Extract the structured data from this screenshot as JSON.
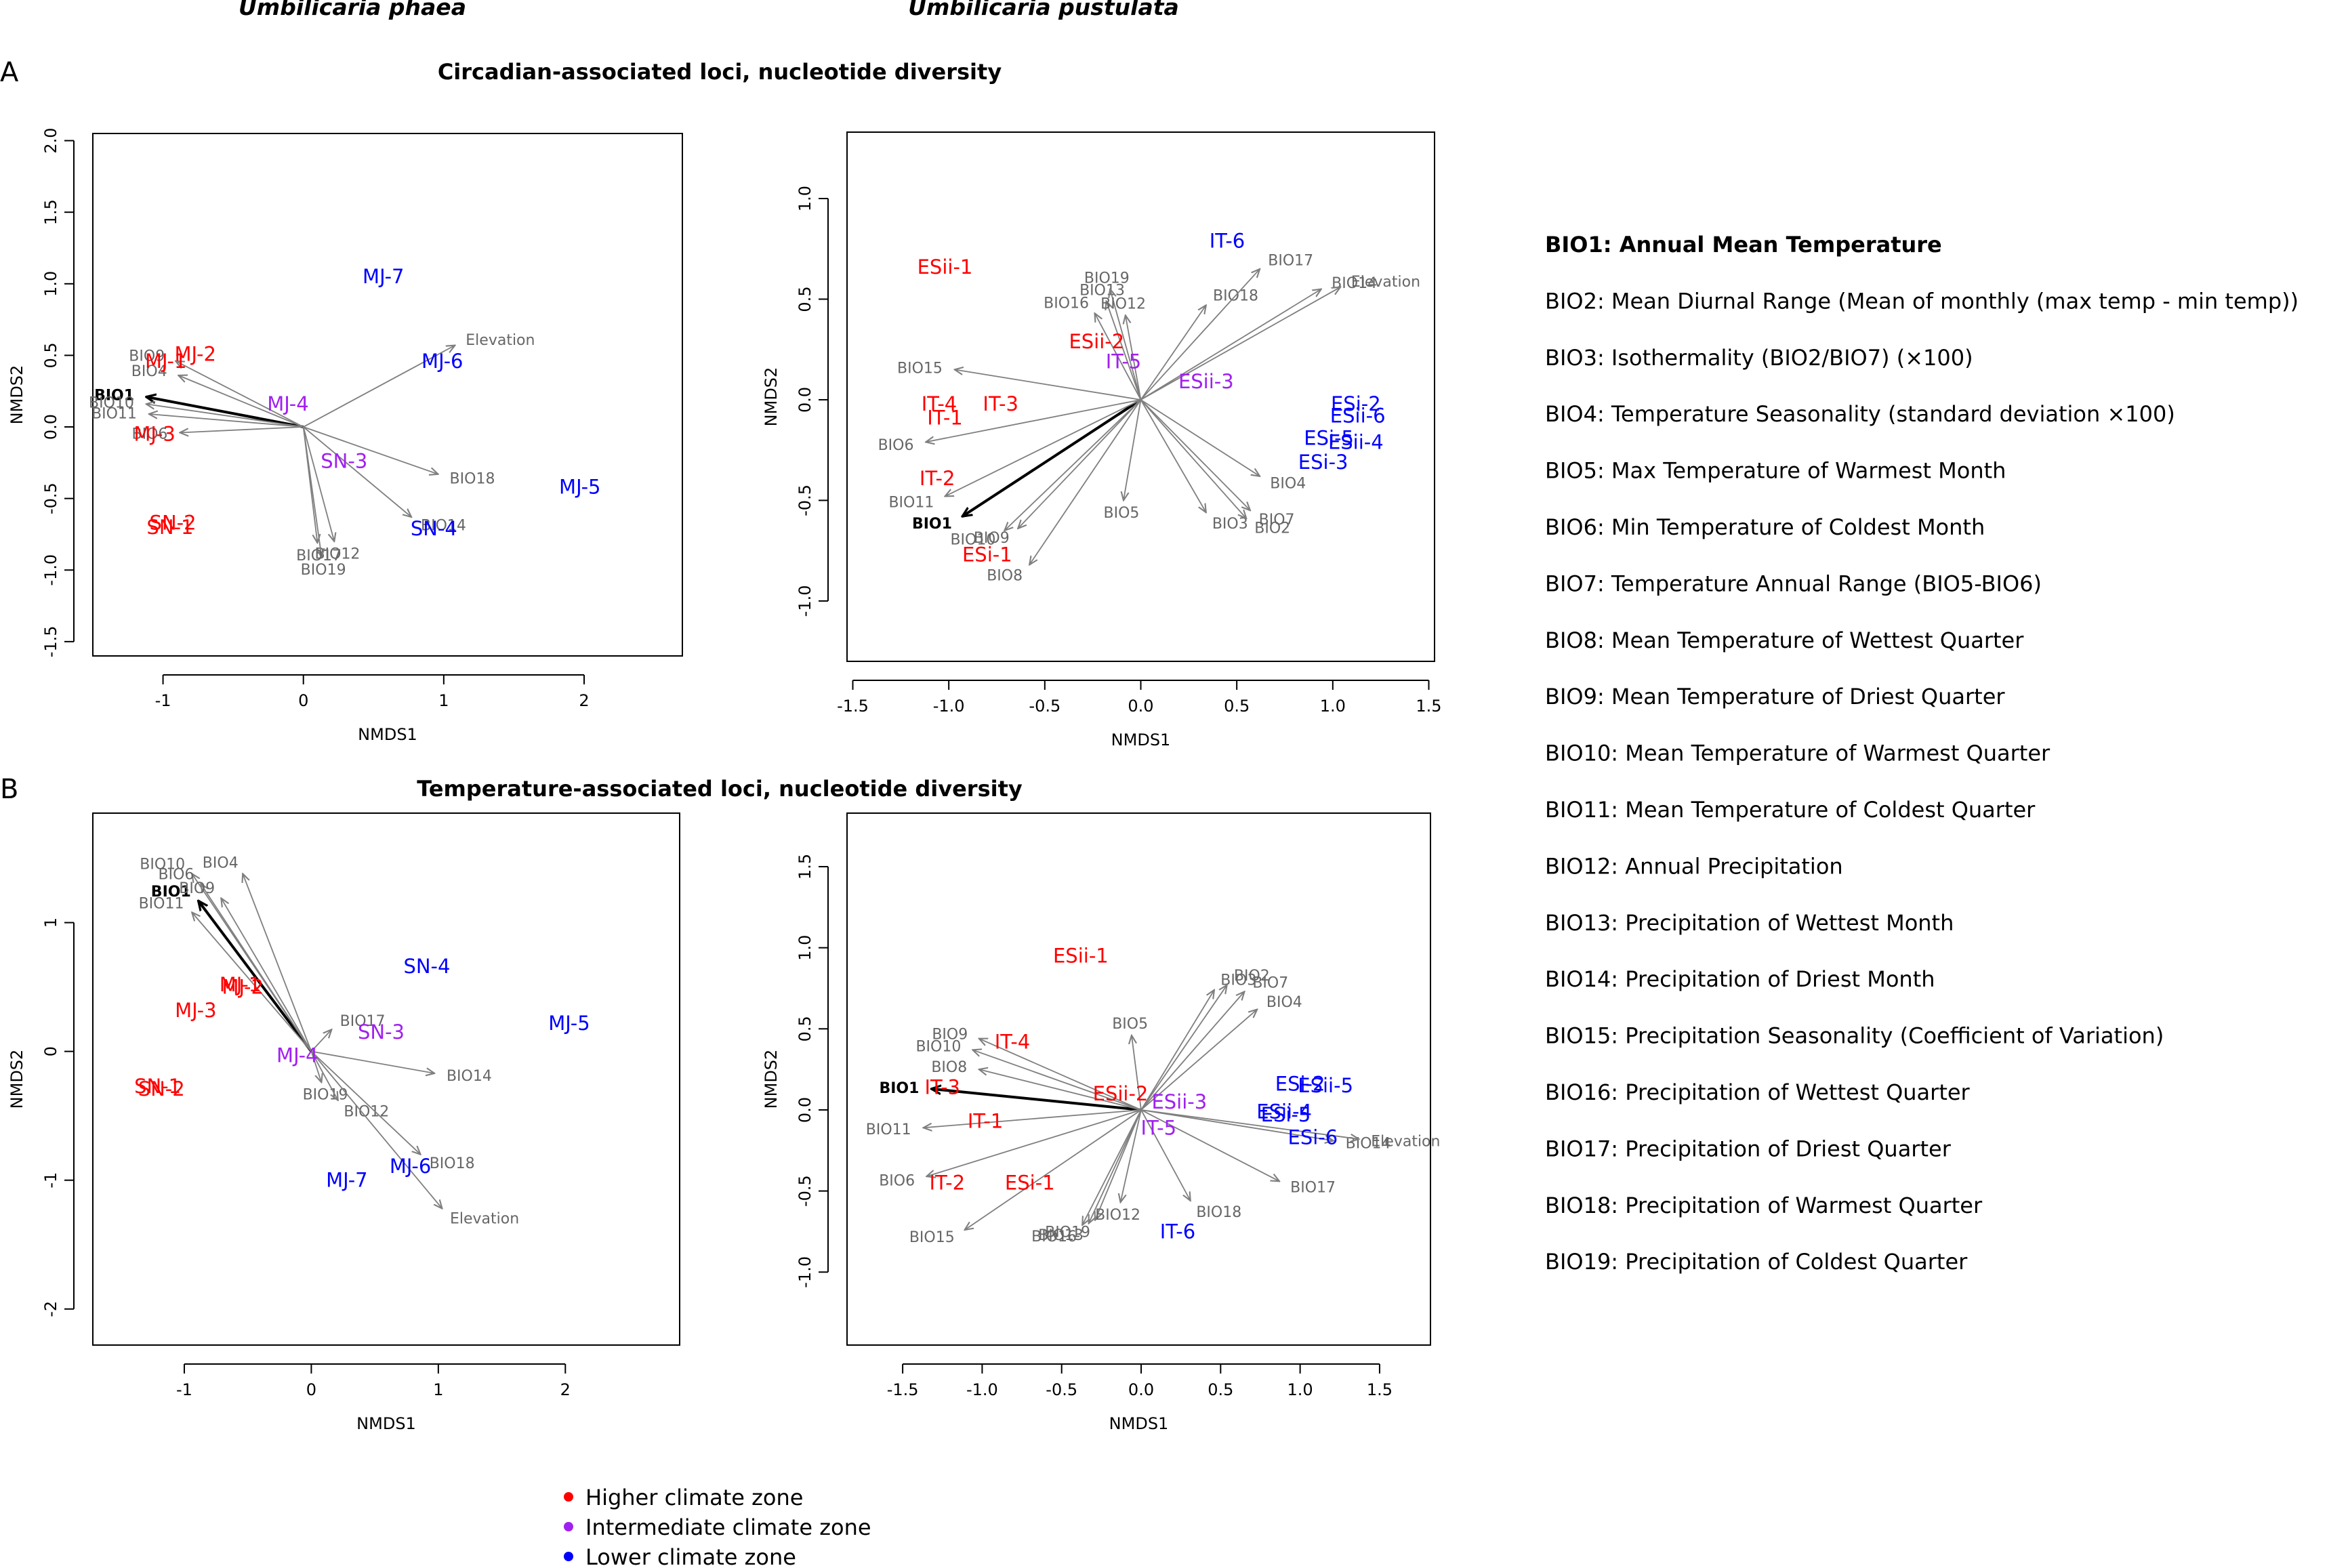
{
  "column_titles": [
    "Umbilicaria phaea",
    "Umbilicaria pustulata"
  ],
  "panel_letters": [
    "A",
    "B"
  ],
  "row_titles": [
    "Circadian-associated loci, nucleotide diversity",
    "Temperature-associated loci, nucleotide diversity"
  ],
  "bio_legend": [
    "BIO1: Annual Mean Temperature",
    "BIO2: Mean Diurnal Range (Mean of monthly (max temp - min temp))",
    "BIO3: Isothermality (BIO2/BIO7) (×100)",
    "BIO4: Temperature Seasonality (standard deviation ×100)",
    "BIO5: Max Temperature of Warmest Month",
    "BIO6: Min Temperature of Coldest Month",
    "BIO7: Temperature Annual Range (BIO5-BIO6)",
    "BIO8: Mean Temperature of Wettest Quarter",
    "BIO9: Mean Temperature of Driest Quarter",
    "BIO10: Mean Temperature of Warmest Quarter",
    "BIO11: Mean Temperature of Coldest Quarter",
    "BIO12: Annual Precipitation",
    "BIO13: Precipitation of Wettest Month",
    "BIO14: Precipitation of Driest Month",
    "BIO15: Precipitation Seasonality (Coefficient of Variation)",
    "BIO16: Precipitation of Wettest Quarter",
    "BIO17: Precipitation of Driest Quarter",
    "BIO18: Precipitation of Warmest Quarter",
    "BIO19: Precipitation of Coldest Quarter"
  ],
  "zone_legend": [
    {
      "label": "Higher climate zone",
      "color": "#ff0000"
    },
    {
      "label": "Intermediate climate zone",
      "color": "#a020f0"
    },
    {
      "label": "Lower climate zone",
      "color": "#0000ff"
    }
  ],
  "colors": {
    "high": "#ff0000",
    "mid": "#a020f0",
    "low": "#0000ff",
    "arrow": "#7f7f7f",
    "bio1": "#000000"
  },
  "chart_data": [
    {
      "type": "scatter",
      "panel": "A-phaea",
      "xlabel": "NMDS1",
      "ylabel": "NMDS2",
      "xlim": [
        -1.5,
        2.7
      ],
      "ylim": [
        -1.6,
        2.05
      ],
      "xticks": [
        -1,
        0,
        1,
        2
      ],
      "yticks": [
        -1.5,
        -1.0,
        -0.5,
        0.0,
        0.5,
        1.0,
        1.5,
        2.0
      ],
      "points": [
        {
          "label": "MJ-7",
          "x": 0.57,
          "y": 1.05,
          "zone": "low"
        },
        {
          "label": "MJ-6",
          "x": 0.99,
          "y": 0.46,
          "zone": "low"
        },
        {
          "label": "MJ-5",
          "x": 1.97,
          "y": -0.42,
          "zone": "low"
        },
        {
          "label": "SN-4",
          "x": 0.93,
          "y": -0.71,
          "zone": "low"
        },
        {
          "label": "MJ-4",
          "x": -0.11,
          "y": 0.16,
          "zone": "mid"
        },
        {
          "label": "SN-3",
          "x": 0.29,
          "y": -0.24,
          "zone": "mid"
        },
        {
          "label": "MJ-2",
          "x": -0.77,
          "y": 0.51,
          "zone": "high"
        },
        {
          "label": "MJ-1",
          "x": -0.98,
          "y": 0.46,
          "zone": "high"
        },
        {
          "label": "MJ-3",
          "x": -1.06,
          "y": -0.05,
          "zone": "high"
        },
        {
          "label": "SN-2",
          "x": -0.93,
          "y": -0.67,
          "zone": "high"
        },
        {
          "label": "SN-1",
          "x": -0.95,
          "y": -0.7,
          "zone": "high"
        }
      ],
      "vectors": [
        {
          "label": "BIO1",
          "x": -1.12,
          "y": 0.21
        },
        {
          "label": "BIO9",
          "x": -0.91,
          "y": 0.46
        },
        {
          "label": "BIO4",
          "x": -0.89,
          "y": 0.36
        },
        {
          "label": "BIO10",
          "x": -1.12,
          "y": 0.16
        },
        {
          "label": "BIO11",
          "x": -1.1,
          "y": 0.09
        },
        {
          "label": "BIO6",
          "x": -0.88,
          "y": -0.04
        },
        {
          "label": "Elevation",
          "x": 1.08,
          "y": 0.57
        },
        {
          "label": "BIO18",
          "x": 0.96,
          "y": -0.33
        },
        {
          "label": "BIO14",
          "x": 0.77,
          "y": -0.63
        },
        {
          "label": "BIO12",
          "x": 0.22,
          "y": -0.8
        },
        {
          "label": "BIO19",
          "x": 0.13,
          "y": -0.91
        },
        {
          "label": "BIO17",
          "x": 0.1,
          "y": -0.81
        }
      ]
    },
    {
      "type": "scatter",
      "panel": "A-pustulata",
      "xlabel": "NMDS1",
      "ylabel": "NMDS2",
      "xlim": [
        -1.53,
        1.53
      ],
      "ylim": [
        -1.3,
        1.33
      ],
      "xticks": [
        -1.5,
        -1.0,
        -0.5,
        0.0,
        0.5,
        1.0,
        1.5
      ],
      "yticks": [
        -1.0,
        -0.5,
        0.0,
        0.5,
        1.0
      ],
      "points": [
        {
          "label": "ESii-1",
          "x": -1.02,
          "y": 0.66,
          "zone": "high"
        },
        {
          "label": "ESii-2",
          "x": -0.23,
          "y": 0.29,
          "zone": "high"
        },
        {
          "label": "IT-4",
          "x": -1.05,
          "y": -0.02,
          "zone": "high"
        },
        {
          "label": "IT-3",
          "x": -0.73,
          "y": -0.02,
          "zone": "high"
        },
        {
          "label": "IT-1",
          "x": -1.02,
          "y": -0.09,
          "zone": "high"
        },
        {
          "label": "IT-2",
          "x": -1.06,
          "y": -0.39,
          "zone": "high"
        },
        {
          "label": "ESi-1",
          "x": -0.8,
          "y": -0.77,
          "zone": "high"
        },
        {
          "label": "IT-5",
          "x": -0.09,
          "y": 0.19,
          "zone": "mid"
        },
        {
          "label": "ESii-3",
          "x": 0.34,
          "y": 0.09,
          "zone": "mid"
        },
        {
          "label": "IT-6",
          "x": 0.45,
          "y": 0.79,
          "zone": "low"
        },
        {
          "label": "ESi-2",
          "x": 1.12,
          "y": -0.02,
          "zone": "low"
        },
        {
          "label": "ESii-6",
          "x": 1.13,
          "y": -0.08,
          "zone": "low"
        },
        {
          "label": "ESi-5",
          "x": 0.98,
          "y": -0.19,
          "zone": "low"
        },
        {
          "label": "ESii-4",
          "x": 1.12,
          "y": -0.21,
          "zone": "low"
        },
        {
          "label": "ESi-3",
          "x": 0.95,
          "y": -0.31,
          "zone": "low"
        }
      ],
      "vectors": [
        {
          "label": "BIO1",
          "x": -0.93,
          "y": -0.58
        },
        {
          "label": "BIO10",
          "x": -0.71,
          "y": -0.65
        },
        {
          "label": "BIO9",
          "x": -0.64,
          "y": -0.64
        },
        {
          "label": "BIO8",
          "x": -0.58,
          "y": -0.82
        },
        {
          "label": "BIO11",
          "x": -1.02,
          "y": -0.48
        },
        {
          "label": "BIO6",
          "x": -1.12,
          "y": -0.21
        },
        {
          "label": "BIO15",
          "x": -0.97,
          "y": 0.15
        },
        {
          "label": "BIO16",
          "x": -0.24,
          "y": 0.43
        },
        {
          "label": "BIO13",
          "x": -0.18,
          "y": 0.49
        },
        {
          "label": "BIO19",
          "x": -0.16,
          "y": 0.55
        },
        {
          "label": "BIO12",
          "x": -0.08,
          "y": 0.42
        },
        {
          "label": "BIO18",
          "x": 0.34,
          "y": 0.47
        },
        {
          "label": "BIO17",
          "x": 0.62,
          "y": 0.65
        },
        {
          "label": "BIO14",
          "x": 0.94,
          "y": 0.55
        },
        {
          "label": "Elevation",
          "x": 1.04,
          "y": 0.56
        },
        {
          "label": "BIO5",
          "x": -0.09,
          "y": -0.5
        },
        {
          "label": "BIO3",
          "x": 0.34,
          "y": -0.56
        },
        {
          "label": "BIO2",
          "x": 0.55,
          "y": -0.59
        },
        {
          "label": "BIO7",
          "x": 0.57,
          "y": -0.55
        },
        {
          "label": "BIO4",
          "x": 0.62,
          "y": -0.38
        }
      ]
    },
    {
      "type": "scatter",
      "panel": "B-phaea",
      "xlabel": "NMDS1",
      "ylabel": "NMDS2",
      "xlim": [
        -1.72,
        2.9
      ],
      "ylim": [
        -2.28,
        1.85
      ],
      "xticks": [
        -1,
        0,
        1,
        2
      ],
      "yticks": [
        -2,
        -1,
        0,
        1
      ],
      "points": [
        {
          "label": "SN-4",
          "x": 0.91,
          "y": 0.66,
          "zone": "low"
        },
        {
          "label": "MJ-5",
          "x": 2.03,
          "y": 0.22,
          "zone": "low"
        },
        {
          "label": "MJ-6",
          "x": 0.78,
          "y": -0.89,
          "zone": "low"
        },
        {
          "label": "MJ-7",
          "x": 0.28,
          "y": -1.0,
          "zone": "low"
        },
        {
          "label": "SN-3",
          "x": 0.55,
          "y": 0.15,
          "zone": "mid"
        },
        {
          "label": "MJ-4",
          "x": -0.11,
          "y": -0.03,
          "zone": "mid"
        },
        {
          "label": "MJ-1",
          "x": -0.56,
          "y": 0.52,
          "zone": "high"
        },
        {
          "label": "MJ-2",
          "x": -0.54,
          "y": 0.5,
          "zone": "high"
        },
        {
          "label": "MJ-3",
          "x": -0.91,
          "y": 0.32,
          "zone": "high"
        },
        {
          "label": "SN-1",
          "x": -1.21,
          "y": -0.27,
          "zone": "high"
        },
        {
          "label": "SN-2",
          "x": -1.18,
          "y": -0.29,
          "zone": "high"
        }
      ],
      "vectors": [
        {
          "label": "BIO1",
          "x": -0.89,
          "y": 1.17
        },
        {
          "label": "BIO4",
          "x": -0.54,
          "y": 1.38
        },
        {
          "label": "BIO10",
          "x": -0.94,
          "y": 1.38
        },
        {
          "label": "BIO6",
          "x": -0.87,
          "y": 1.3
        },
        {
          "label": "BIO9",
          "x": -0.71,
          "y": 1.19
        },
        {
          "label": "BIO11",
          "x": -0.94,
          "y": 1.08
        },
        {
          "label": "BIO17",
          "x": 0.16,
          "y": 0.17
        },
        {
          "label": "BIO14",
          "x": 0.97,
          "y": -0.17
        },
        {
          "label": "BIO19",
          "x": 0.08,
          "y": -0.24
        },
        {
          "label": "BIO12",
          "x": 0.21,
          "y": -0.38
        },
        {
          "label": "BIO18",
          "x": 0.86,
          "y": -0.8
        },
        {
          "label": "Elevation",
          "x": 1.03,
          "y": -1.22
        }
      ]
    },
    {
      "type": "scatter",
      "panel": "B-pustulata",
      "xlabel": "NMDS1",
      "ylabel": "NMDS2",
      "xlim": [
        -1.85,
        1.82
      ],
      "ylim": [
        -1.45,
        1.83
      ],
      "xticks": [
        -1.5,
        -1.0,
        -0.5,
        0.0,
        0.5,
        1.0,
        1.5
      ],
      "yticks": [
        -1.0,
        -0.5,
        0.0,
        0.5,
        1.0,
        1.5
      ],
      "points": [
        {
          "label": "ESii-1",
          "x": -0.38,
          "y": 0.95,
          "zone": "high"
        },
        {
          "label": "IT-4",
          "x": -0.81,
          "y": 0.42,
          "zone": "high"
        },
        {
          "label": "IT-3",
          "x": -1.25,
          "y": 0.14,
          "zone": "high"
        },
        {
          "label": "ESii-2",
          "x": -0.13,
          "y": 0.1,
          "zone": "high"
        },
        {
          "label": "IT-1",
          "x": -0.98,
          "y": -0.07,
          "zone": "high"
        },
        {
          "label": "IT-2",
          "x": -1.22,
          "y": -0.45,
          "zone": "high"
        },
        {
          "label": "ESi-1",
          "x": -0.7,
          "y": -0.45,
          "zone": "high"
        },
        {
          "label": "ESii-3",
          "x": 0.24,
          "y": 0.05,
          "zone": "mid"
        },
        {
          "label": "IT-5",
          "x": 0.11,
          "y": -0.11,
          "zone": "mid"
        },
        {
          "label": "IT-6",
          "x": 0.23,
          "y": -0.75,
          "zone": "low"
        },
        {
          "label": "ESi-2",
          "x": 1.0,
          "y": 0.16,
          "zone": "low"
        },
        {
          "label": "ESii-5",
          "x": 1.16,
          "y": 0.15,
          "zone": "low"
        },
        {
          "label": "ESii-4",
          "x": 0.9,
          "y": -0.01,
          "zone": "low"
        },
        {
          "label": "ESi-5",
          "x": 0.91,
          "y": -0.03,
          "zone": "low"
        },
        {
          "label": "ESi-6",
          "x": 1.08,
          "y": -0.17,
          "zone": "low"
        }
      ],
      "vectors": [
        {
          "label": "BIO1",
          "x": -1.32,
          "y": 0.13
        },
        {
          "label": "BIO9",
          "x": -1.02,
          "y": 0.44
        },
        {
          "label": "BIO10",
          "x": -1.06,
          "y": 0.37
        },
        {
          "label": "BIO8",
          "x": -1.02,
          "y": 0.25
        },
        {
          "label": "BIO11",
          "x": -1.37,
          "y": -0.11
        },
        {
          "label": "BIO6",
          "x": -1.35,
          "y": -0.41
        },
        {
          "label": "BIO15",
          "x": -1.11,
          "y": -0.74
        },
        {
          "label": "BIO16",
          "x": -0.37,
          "y": -0.71
        },
        {
          "label": "BIO13",
          "x": -0.33,
          "y": -0.7
        },
        {
          "label": "BIO19",
          "x": -0.29,
          "y": -0.68
        },
        {
          "label": "BIO12",
          "x": -0.13,
          "y": -0.57
        },
        {
          "label": "BIO18",
          "x": 0.31,
          "y": -0.56
        },
        {
          "label": "BIO17",
          "x": 0.87,
          "y": -0.44
        },
        {
          "label": "BIO14",
          "x": 1.21,
          "y": -0.19
        },
        {
          "label": "Elevation",
          "x": 1.37,
          "y": -0.18
        },
        {
          "label": "BIO5",
          "x": -0.06,
          "y": 0.46
        },
        {
          "label": "BIO3",
          "x": 0.46,
          "y": 0.74
        },
        {
          "label": "BIO2",
          "x": 0.54,
          "y": 0.77
        },
        {
          "label": "BIO7",
          "x": 0.65,
          "y": 0.73
        },
        {
          "label": "BIO4",
          "x": 0.73,
          "y": 0.62
        }
      ]
    }
  ]
}
